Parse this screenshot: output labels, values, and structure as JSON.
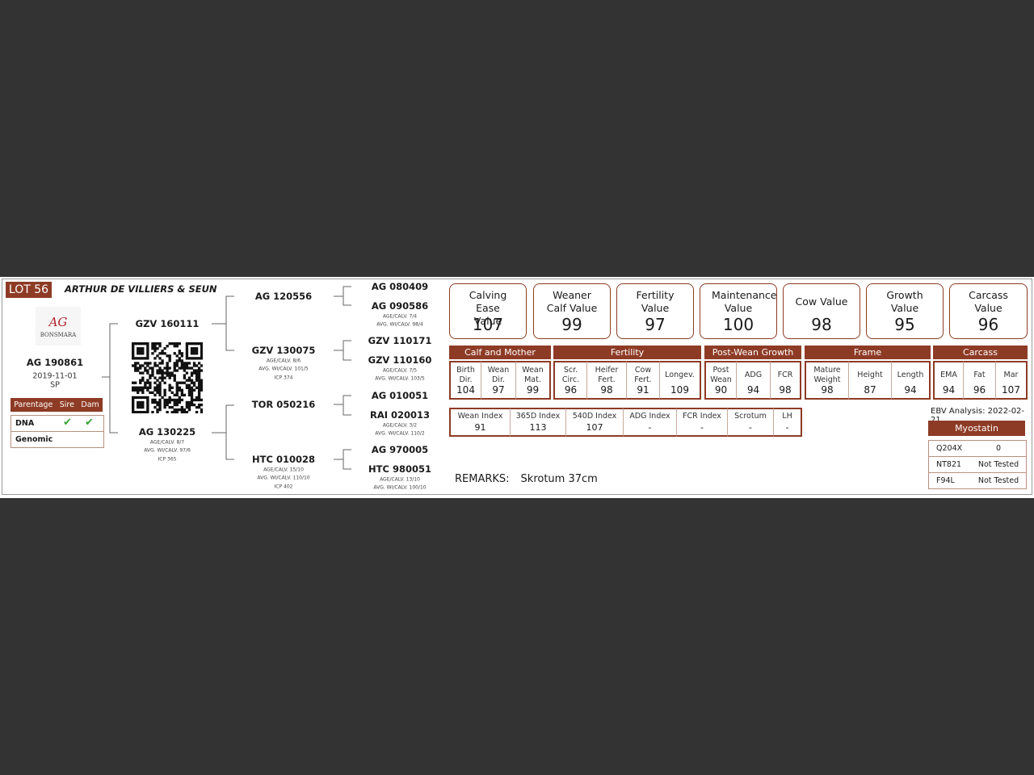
{
  "lot": "LOT 56",
  "owner": "ARTHUR DE VILLIERS & SEUN",
  "logo": {
    "mark": "AG",
    "brand": "BONSMARA"
  },
  "animal": {
    "id": "AG 190861",
    "birth_date": "2019-11-01",
    "code": "SP"
  },
  "parentage": {
    "headers": [
      "Parentage",
      "Sire",
      "Dam"
    ],
    "rows": [
      {
        "label": "DNA",
        "sire": true,
        "dam": true
      },
      {
        "label": "Genomic",
        "sire": false,
        "dam": false
      }
    ],
    "check_color": "#3aa335"
  },
  "pedigree": {
    "sire": {
      "id": "GZV 160111",
      "details": []
    },
    "dam": {
      "id": "AG 130225",
      "details": [
        "AGE/CALV. 8/7",
        "AVG. WI/CALV. 97/6",
        "ICP 365"
      ]
    },
    "sire_sire": {
      "id": "AG 120556",
      "details": []
    },
    "sire_dam": {
      "id": "GZV 130075",
      "details": [
        "AGE/CALV. 8/6",
        "AVG. WI/CALV. 101/5",
        "ICP 374"
      ]
    },
    "dam_sire": {
      "id": "TOR 050216",
      "details": []
    },
    "dam_dam": {
      "id": "HTC 010028",
      "details": [
        "AGE/CALV. 15/10",
        "AVG. WI/CALV. 110/10",
        "ICP 402"
      ]
    },
    "ss_sire": {
      "id": "AG 080409",
      "details": []
    },
    "ss_dam": {
      "id": "AG 090586",
      "details": [
        "AGE/CALV. 7/4",
        "AVG. WI/CALV. 98/4"
      ]
    },
    "sd_sire": {
      "id": "GZV 110171",
      "details": []
    },
    "sd_dam": {
      "id": "GZV 110160",
      "details": [
        "AGE/CALV. 7/5",
        "AVG. WI/CALV. 103/5"
      ]
    },
    "ds_sire": {
      "id": "AG 010051",
      "details": []
    },
    "ds_dam": {
      "id": "RAI 020013",
      "details": [
        "AGE/CALV. 3/2",
        "AVG. WI/CALV. 110/2"
      ]
    },
    "dd_sire": {
      "id": "AG 970005",
      "details": []
    },
    "dd_dam": {
      "id": "HTC 980051",
      "details": [
        "AGE/CALV. 13/10",
        "AVG. WI/CALV. 100/10"
      ]
    }
  },
  "value_boxes": [
    {
      "title": "Calving Ease Value",
      "value": "107"
    },
    {
      "title": "Weaner Calf Value",
      "value": "99"
    },
    {
      "title": "Fertility Value",
      "value": "97"
    },
    {
      "title": "Maintenance Value",
      "value": "100"
    },
    {
      "title": "Cow Value",
      "value": "98"
    },
    {
      "title": "Growth Value",
      "value": "95"
    },
    {
      "title": "Carcass Value",
      "value": "96"
    }
  ],
  "ebv_groups": [
    {
      "name": "Calf and Mother",
      "traits": [
        {
          "label": "Birth Dir.",
          "value": "104"
        },
        {
          "label": "Wean Dir.",
          "value": "97"
        },
        {
          "label": "Wean Mat.",
          "value": "99"
        }
      ]
    },
    {
      "name": "Fertility",
      "traits": [
        {
          "label": "Scr. Circ.",
          "value": "96"
        },
        {
          "label": "Heifer Fert.",
          "value": "98"
        },
        {
          "label": "Cow Fert.",
          "value": "91"
        },
        {
          "label": "Longev.",
          "value": "109"
        }
      ]
    },
    {
      "name": "Post-Wean Growth",
      "traits": [
        {
          "label": "Post Wean",
          "value": "90"
        },
        {
          "label": "ADG",
          "value": "94"
        },
        {
          "label": "FCR",
          "value": "98"
        }
      ]
    },
    {
      "name": "Frame",
      "traits": [
        {
          "label": "Mature Weight",
          "value": "98"
        },
        {
          "label": "Height",
          "value": "87"
        },
        {
          "label": "Length",
          "value": "94"
        }
      ]
    },
    {
      "name": "Carcass",
      "traits": [
        {
          "label": "EMA",
          "value": "94"
        },
        {
          "label": "Fat",
          "value": "96"
        },
        {
          "label": "Mar",
          "value": "107"
        }
      ]
    }
  ],
  "indexes": [
    {
      "label": "Wean Index",
      "value": "91"
    },
    {
      "label": "365D Index",
      "value": "113"
    },
    {
      "label": "540D Index",
      "value": "107"
    },
    {
      "label": "ADG Index",
      "value": "-"
    },
    {
      "label": "FCR Index",
      "value": "-"
    },
    {
      "label": "Scrotum",
      "value": "-"
    },
    {
      "label": "LH",
      "value": "-"
    }
  ],
  "ebv_analysis": "EBV Analysis: 2022-02-21",
  "myostatin": {
    "title": "Myostatin",
    "rows": [
      {
        "marker": "Q204X",
        "result": "0"
      },
      {
        "marker": "NT821",
        "result": "Not Tested"
      },
      {
        "marker": "F94L",
        "result": "Not Tested"
      }
    ]
  },
  "remarks": {
    "label": "REMARKS:",
    "text": "Skrotum 37cm"
  },
  "colors": {
    "accent": "#8e3b25",
    "background": "#333333"
  }
}
